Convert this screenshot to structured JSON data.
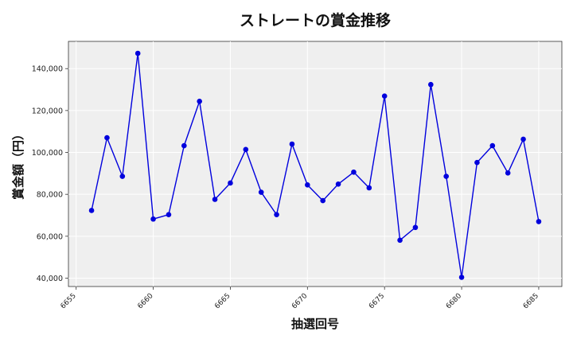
{
  "chart_data": {
    "type": "line",
    "title": "ストレートの賞金推移",
    "xlabel": "抽選回号",
    "ylabel": "賞金額（円）",
    "xlim": [
      6654.5,
      6686.5
    ],
    "ylim": [
      36000,
      153000
    ],
    "x_ticks": [
      6655,
      6660,
      6665,
      6670,
      6675,
      6680,
      6685
    ],
    "y_ticks": [
      40000,
      60000,
      80000,
      100000,
      120000,
      140000
    ],
    "y_tick_labels": [
      "40,000",
      "60,000",
      "80,000",
      "100,000",
      "120,000",
      "140,000"
    ],
    "grid": true,
    "colors": {
      "series": "#0000dd",
      "plot_bg": "#efefef",
      "grid": "#ffffff"
    },
    "series": [
      {
        "x": [
          6656,
          6657,
          6658,
          6659,
          6660,
          6661,
          6662,
          6663,
          6664,
          6665,
          6666,
          6667,
          6668,
          6669,
          6670,
          6671,
          6672,
          6673,
          6674,
          6675,
          6676,
          6677,
          6678,
          6679,
          6680,
          6681,
          6682,
          6683,
          6684,
          6685
        ],
        "values": [
          72300,
          107000,
          88600,
          147300,
          68200,
          70300,
          103200,
          124400,
          77600,
          85400,
          101400,
          81000,
          70300,
          104000,
          84500,
          77000,
          84900,
          90600,
          83100,
          126900,
          58100,
          64200,
          132400,
          88600,
          40400,
          95200,
          103200,
          90200,
          106300,
          67000
        ]
      }
    ]
  }
}
